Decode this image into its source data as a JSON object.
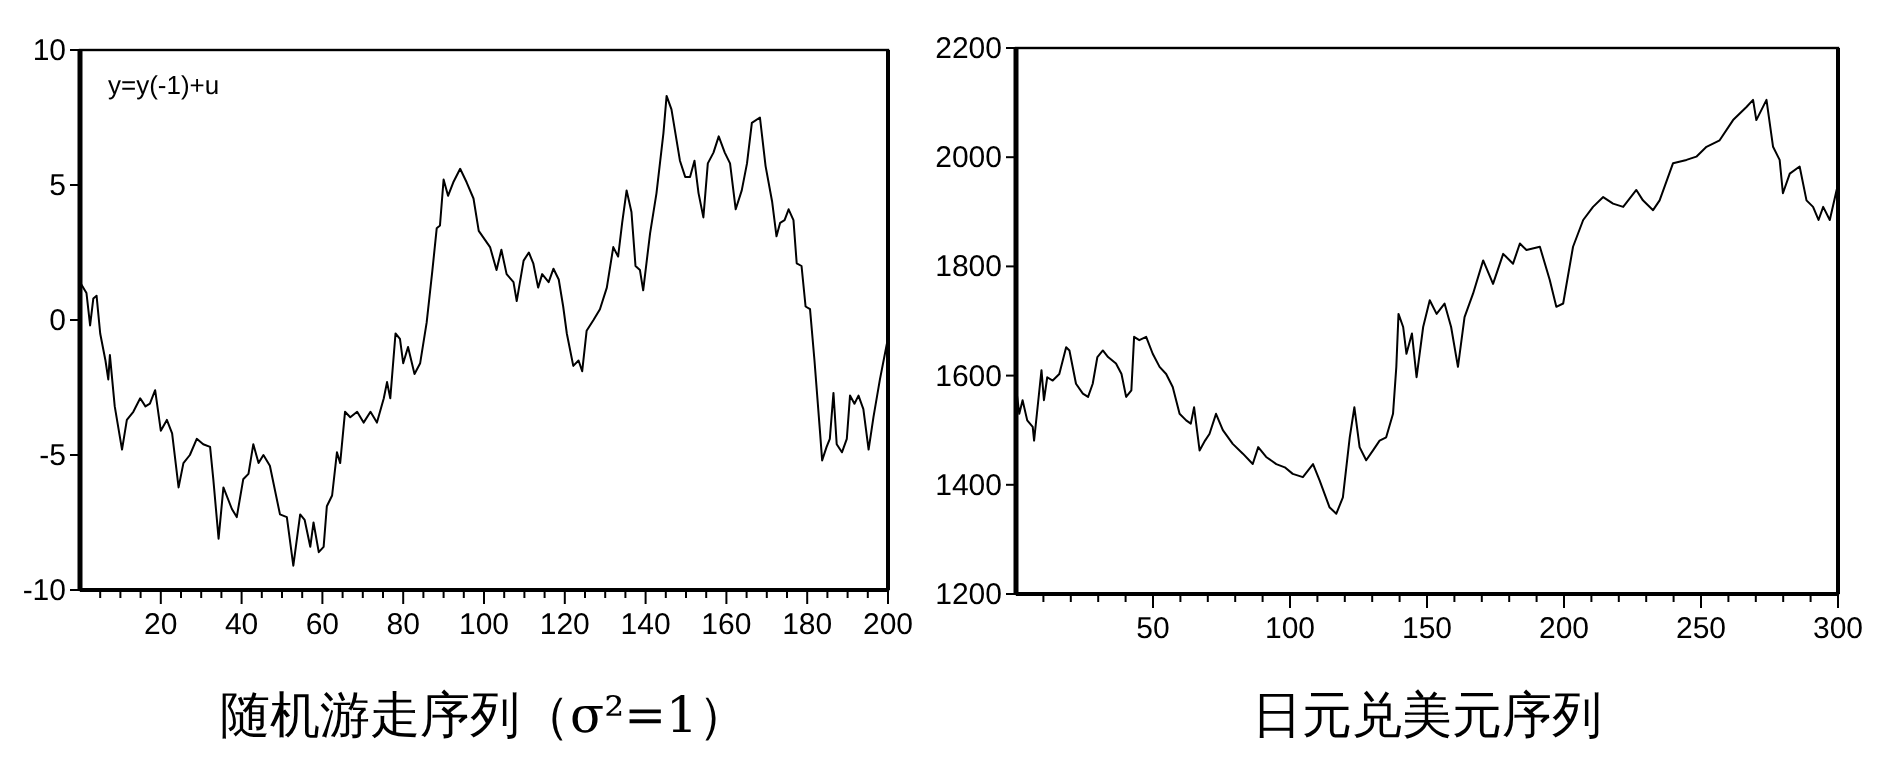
{
  "chart_data": [
    {
      "type": "line",
      "title": "随机游走序列（σ²=1）",
      "annotations": [
        "y=y(-1)+u"
      ],
      "xlim": [
        0,
        200
      ],
      "ylim": [
        -10,
        10
      ],
      "yticks": [
        -10,
        -5,
        0,
        5,
        10
      ],
      "xticks": [
        {
          "value": 5,
          "label": null
        },
        {
          "value": 10,
          "label": null
        },
        {
          "value": 15,
          "label": null
        },
        20,
        {
          "value": 25,
          "label": null
        },
        {
          "value": 30,
          "label": null
        },
        {
          "value": 35,
          "label": null
        },
        40,
        {
          "value": 45,
          "label": null
        },
        {
          "value": 50,
          "label": null
        },
        {
          "value": 55,
          "label": null
        },
        60,
        {
          "value": 65,
          "label": null
        },
        {
          "value": 70,
          "label": null
        },
        {
          "value": 75,
          "label": null
        },
        80,
        {
          "value": 85,
          "label": null
        },
        {
          "value": 90,
          "label": null
        },
        {
          "value": 95,
          "label": null
        },
        100,
        {
          "value": 105,
          "label": null
        },
        {
          "value": 110,
          "label": null
        },
        {
          "value": 115,
          "label": null
        },
        120,
        {
          "value": 125,
          "label": null
        },
        {
          "value": 130,
          "label": null
        },
        {
          "value": 135,
          "label": null
        },
        140,
        {
          "value": 145,
          "label": null
        },
        {
          "value": 150,
          "label": null
        },
        {
          "value": 155,
          "label": null
        },
        160,
        {
          "value": 165,
          "label": null
        },
        {
          "value": 170,
          "label": null
        },
        {
          "value": 175,
          "label": null
        },
        180,
        {
          "value": 185,
          "label": null
        },
        {
          "value": 190,
          "label": null
        },
        {
          "value": 195,
          "label": null
        },
        200
      ],
      "series": [
        {
          "color": "#000000",
          "x": [
            0,
            1.6,
            2.5,
            3.3,
            4.1,
            5,
            6.3,
            7,
            7.4,
            8.6,
            10.4,
            11.6,
            13.2,
            14.9,
            16.2,
            17.3,
            18.6,
            20,
            21.5,
            22.8,
            24.4,
            25.6,
            27.2,
            28.9,
            30.5,
            32.2,
            33,
            34.3,
            35.5,
            37.6,
            38.8,
            40.4,
            41.7,
            42.9,
            44.2,
            45.4,
            47,
            49.5,
            51.2,
            52.8,
            54.5,
            55.6,
            57,
            57.8,
            59.1,
            60.3,
            61.1,
            62.4,
            63.6,
            64.4,
            65.6,
            66.9,
            68.6,
            70.2,
            71.9,
            73.5,
            75.2,
            76,
            76.8,
            78.1,
            79.2,
            80,
            81.2,
            82.8,
            84.2,
            85.8,
            87.2,
            88.3,
            89.1,
            90,
            91.1,
            92.4,
            94.1,
            95.7,
            97.4,
            98.7,
            101.5,
            103.1,
            104.3,
            105.6,
            107.3,
            108.1,
            109.8,
            111.1,
            112.2,
            113.4,
            114.4,
            116,
            117.2,
            118.5,
            119.6,
            120.5,
            122.1,
            123.4,
            124.3,
            125.4,
            127.1,
            128.7,
            130.4,
            132,
            133.2,
            134.2,
            135.3,
            136.5,
            137.5,
            138.6,
            139.4,
            141.1,
            142.7,
            144.4,
            145.2,
            146.4,
            148.5,
            149.8,
            151,
            152.1,
            153.1,
            154.3,
            155.4,
            156.8,
            158.1,
            159.6,
            160.9,
            162.3,
            163.8,
            165.1,
            166.3,
            168.3,
            169.7,
            171.3,
            172.4,
            173.3,
            174.4,
            175.4,
            176.6,
            177.4,
            178.6,
            179.6,
            180.7,
            181.8,
            183.2,
            183.7,
            184.8,
            185.6,
            186.5,
            187.3,
            188.6,
            189.8,
            190.6,
            191.7,
            192.7,
            193.9,
            195.2,
            196.4,
            198,
            199.7,
            200
          ],
          "values": [
            1.4,
            1.0,
            -0.2,
            0.8,
            0.9,
            -0.5,
            -1.5,
            -2.2,
            -1.3,
            -3.2,
            -4.8,
            -3.7,
            -3.4,
            -2.9,
            -3.2,
            -3.1,
            -2.6,
            -4.1,
            -3.7,
            -4.2,
            -6.2,
            -5.3,
            -5.0,
            -4.4,
            -4.6,
            -4.7,
            -5.9,
            -8.1,
            -6.2,
            -7.0,
            -7.3,
            -5.9,
            -5.7,
            -4.6,
            -5.3,
            -5.0,
            -5.4,
            -7.2,
            -7.3,
            -9.1,
            -7.2,
            -7.4,
            -8.4,
            -7.5,
            -8.6,
            -8.4,
            -6.9,
            -6.5,
            -4.9,
            -5.3,
            -3.4,
            -3.6,
            -3.4,
            -3.8,
            -3.4,
            -3.8,
            -2.9,
            -2.3,
            -2.9,
            -0.5,
            -0.7,
            -1.6,
            -1.0,
            -2.0,
            -1.6,
            -0.1,
            1.8,
            3.4,
            3.5,
            5.2,
            4.6,
            5.1,
            5.6,
            5.1,
            4.5,
            3.3,
            2.7,
            1.85,
            2.6,
            1.7,
            1.4,
            0.7,
            2.2,
            2.5,
            2.1,
            1.2,
            1.7,
            1.4,
            1.9,
            1.5,
            0.5,
            -0.5,
            -1.7,
            -1.5,
            -1.9,
            -0.4,
            0,
            0.4,
            1.2,
            2.7,
            2.35,
            3.6,
            4.8,
            4.0,
            2.0,
            1.85,
            1.1,
            3.2,
            4.7,
            6.9,
            8.3,
            7.8,
            5.9,
            5.3,
            5.3,
            5.9,
            4.7,
            3.8,
            5.8,
            6.2,
            6.8,
            6.2,
            5.8,
            4.1,
            4.8,
            5.8,
            7.3,
            7.5,
            5.7,
            4.4,
            3.1,
            3.6,
            3.7,
            4.1,
            3.7,
            2.1,
            2.0,
            0.5,
            0.4,
            -1.5,
            -4.2,
            -5.2,
            -4.7,
            -4.4,
            -2.7,
            -4.6,
            -4.9,
            -4.4,
            -2.8,
            -3.1,
            -2.8,
            -3.3,
            -4.8,
            -3.6,
            -2.2,
            -0.9,
            -0.7
          ]
        }
      ]
    },
    {
      "type": "line",
      "title": "日元兑美元序列",
      "xlim": [
        0,
        300
      ],
      "ylim": [
        1200,
        2200
      ],
      "yticks": [
        1200,
        1400,
        1600,
        1800,
        2000,
        2200
      ],
      "xticks": [
        {
          "value": 10,
          "label": null
        },
        {
          "value": 20,
          "label": null
        },
        {
          "value": 30,
          "label": null
        },
        {
          "value": 40,
          "label": null
        },
        50,
        {
          "value": 60,
          "label": null
        },
        {
          "value": 70,
          "label": null
        },
        {
          "value": 80,
          "label": null
        },
        {
          "value": 90,
          "label": null
        },
        100,
        {
          "value": 110,
          "label": null
        },
        {
          "value": 120,
          "label": null
        },
        {
          "value": 130,
          "label": null
        },
        {
          "value": 140,
          "label": null
        },
        150,
        {
          "value": 160,
          "label": null
        },
        {
          "value": 170,
          "label": null
        },
        {
          "value": 180,
          "label": null
        },
        {
          "value": 190,
          "label": null
        },
        200,
        {
          "value": 210,
          "label": null
        },
        {
          "value": 220,
          "label": null
        },
        {
          "value": 230,
          "label": null
        },
        {
          "value": 240,
          "label": null
        },
        250,
        {
          "value": 260,
          "label": null
        },
        {
          "value": 270,
          "label": null
        },
        {
          "value": 280,
          "label": null
        },
        {
          "value": 290,
          "label": null
        },
        300
      ],
      "series": [
        {
          "color": "#000000",
          "x": [
            0,
            1.2,
            2.4,
            4.1,
            6.1,
            6.6,
            8,
            9.3,
            10.2,
            11.4,
            13.4,
            15.8,
            18.3,
            19.5,
            21.9,
            24.4,
            26.3,
            28,
            29.7,
            31.7,
            33.6,
            36.5,
            38.5,
            40.2,
            42.1,
            43.1,
            45,
            47.5,
            49.9,
            52.4,
            54.8,
            57.2,
            59.7,
            62.1,
            63.8,
            65,
            67,
            69,
            70.6,
            73,
            75.5,
            79.1,
            82.8,
            86.4,
            88.4,
            91.3,
            95,
            98.1,
            101,
            104.7,
            108.4,
            110.8,
            114.4,
            116.9,
            119.3,
            121.8,
            123.5,
            125.4,
            127.8,
            130.3,
            132.7,
            135.1,
            137.6,
            138.8,
            139.6,
            141.3,
            142.5,
            144.5,
            146.2,
            148.6,
            151,
            153.5,
            156.4,
            158.8,
            161.3,
            163.7,
            166.8,
            170.5,
            174.1,
            177.8,
            181.4,
            183.9,
            186.3,
            191.2,
            194.8,
            197.2,
            199.7,
            203.3,
            207,
            210.6,
            214.3,
            217.9,
            221.6,
            226.4,
            228.8,
            232.5,
            234.9,
            239.8,
            244.7,
            248.3,
            252,
            256.8,
            261.7,
            266.6,
            269,
            270.2,
            273.9,
            276.3,
            278.7,
            279.9,
            282.4,
            286,
            288.5,
            290.9,
            292.9,
            294.6,
            297,
            299.5,
            300
          ],
          "values": [
            1579,
            1530,
            1555,
            1518,
            1506,
            1481,
            1548,
            1610,
            1555,
            1597,
            1591,
            1603,
            1652,
            1646,
            1585,
            1567,
            1561,
            1585,
            1634,
            1646,
            1634,
            1622,
            1603,
            1561,
            1573,
            1671,
            1665,
            1671,
            1640,
            1616,
            1603,
            1579,
            1530,
            1518,
            1512,
            1542,
            1463,
            1481,
            1493,
            1530,
            1500,
            1475,
            1457,
            1438,
            1469,
            1451,
            1438,
            1432,
            1420,
            1414,
            1438,
            1408,
            1359,
            1347,
            1377,
            1487,
            1542,
            1469,
            1445,
            1463,
            1481,
            1487,
            1530,
            1616,
            1713,
            1689,
            1640,
            1677,
            1597,
            1689,
            1738,
            1713,
            1732,
            1689,
            1616,
            1707,
            1750,
            1811,
            1768,
            1823,
            1805,
            1842,
            1830,
            1836,
            1775,
            1726,
            1732,
            1836,
            1885,
            1909,
            1927,
            1915,
            1909,
            1940,
            1921,
            1903,
            1921,
            1989,
            1995,
            2001,
            2019,
            2031,
            2068,
            2092,
            2105,
            2068,
            2105,
            2019,
            1995,
            1934,
            1970,
            1983,
            1921,
            1909,
            1885,
            1909,
            1885,
            1940,
            1946
          ]
        }
      ]
    }
  ]
}
